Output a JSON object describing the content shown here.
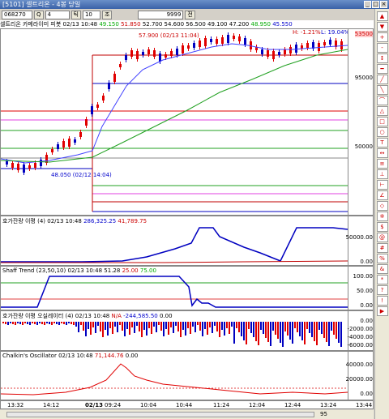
{
  "window": {
    "title": "[5101] 셀트리온 - 4봉 당일",
    "buttons": [
      "_",
      "□",
      "×"
    ]
  },
  "toolbar": {
    "code": "068270",
    "q": "Q",
    "n1": "4",
    "period": "틱",
    "n2": "10",
    "qty": "9999",
    "btn": "전",
    "chk": "조"
  },
  "info": {
    "name": "셀트리온 카메라이미 피봇",
    "date": "02/13 10:48",
    "v1": "49.150",
    "v2": "51.850",
    "v3": "52.700",
    "v4": "54.600",
    "v5": "56.500",
    "v6": "49.100",
    "v7": "47.200",
    "v8": "48.950",
    "v9": "45.550"
  },
  "main_chart": {
    "hi": "H: -1.21%",
    "lo": "L: 19.04%",
    "max_label": "57.900 (02/13 11:04)",
    "min_label": "48.050 (02/12 14:04)",
    "price_tag": "53500",
    "ticks": [
      "95000",
      "50000"
    ]
  },
  "panel1": {
    "label": "호가잔량 이평",
    "params": "(4)",
    "date": "02/13 10:48",
    "v1": "286,325.25",
    "v2": "41,789.75",
    "ticks": [
      "50000.00",
      "0.00"
    ]
  },
  "panel2": {
    "label": "Shaff Trend",
    "params": "(23,50,10)",
    "date": "02/13 10:48",
    "v1": "51.28",
    "v2": "25.00",
    "v3": "75.00",
    "ticks": [
      "100.00",
      "50.00",
      "0.00"
    ]
  },
  "panel3": {
    "label": "호가잔량 이평 오실레이터",
    "params": "(4)",
    "date": "02/13 10:48",
    "v1": "N/A",
    "v2": "-244,585.50",
    "v3": "0.00",
    "ticks": [
      "0.00",
      "-2000.00",
      "-4000.00",
      "-6000.00"
    ]
  },
  "panel4": {
    "label": "Chalkin's Oscillator",
    "date": "02/13 10:48",
    "v1": "71,144.76",
    "v2": "0.00",
    "ticks": [
      "40000.00",
      "20000.00",
      "0.00"
    ]
  },
  "time_axis": [
    "13:32",
    "14:12",
    "02/13",
    "09:24",
    "10:04",
    "10:44",
    "11:24",
    "12:04",
    "12:44",
    "13:24",
    "13:44"
  ],
  "status": {
    "page": "95"
  },
  "sidebar": [
    "▲",
    "▼",
    "+",
    "-",
    "↕",
    "━",
    "╱",
    "╲",
    "⌒",
    "△",
    "□",
    "○",
    "T",
    "↔",
    "≡",
    "⊥",
    "⊢",
    "∠",
    "◇",
    "※",
    "$",
    "@",
    "#",
    "%",
    "&",
    "*",
    "?",
    "!",
    "▶"
  ],
  "colors": {
    "up": "#e00000",
    "down": "#0000c0",
    "ma_blue": "#4040ff",
    "ma_green": "#20a020"
  }
}
